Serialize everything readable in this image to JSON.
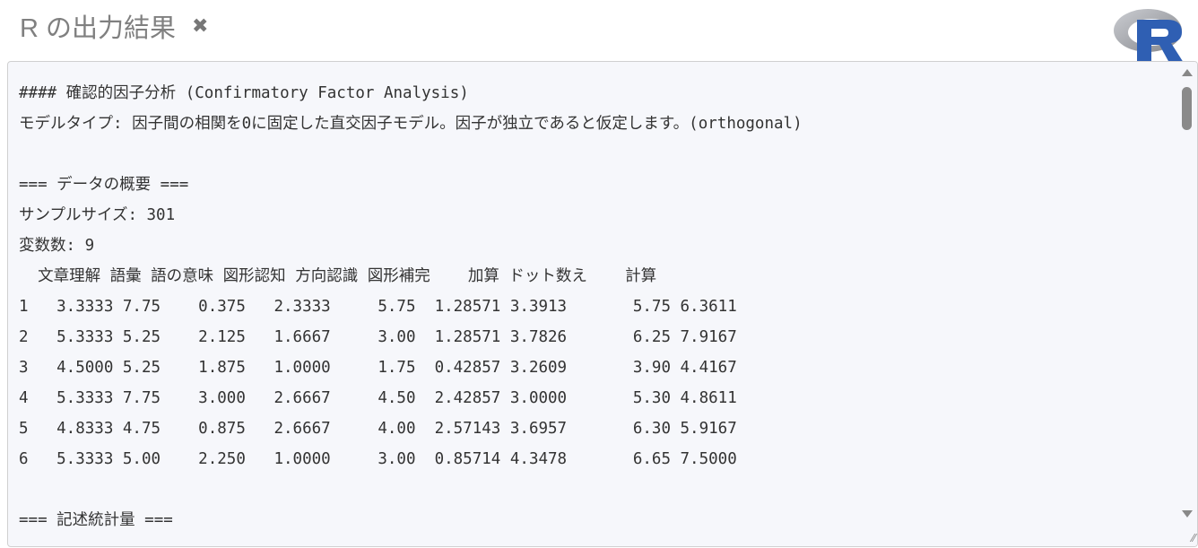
{
  "header": {
    "title": "R の出力結果",
    "close_icon": "close-icon",
    "logo": "R"
  },
  "output": {
    "lines": [
      "#### 確認的因子分析 (Confirmatory Factor Analysis)",
      "モデルタイプ: 因子間の相関を0に固定した直交因子モデル。因子が独立であると仮定します。(orthogonal)",
      "",
      "=== データの概要 ===",
      "サンプルサイズ: 301",
      "変数数: 9",
      "  文章理解 語彙 語の意味 図形認知 方向認識 図形補完    加算 ドット数え    計算",
      "1   3.3333 7.75    0.375   2.3333     5.75  1.28571 3.3913       5.75 6.3611",
      "2   5.3333 5.25    2.125   1.6667     3.00  1.28571 3.7826       6.25 7.9167",
      "3   4.5000 5.25    1.875   1.0000     1.75  0.42857 3.2609       3.90 4.4167",
      "4   5.3333 7.75    3.000   2.6667     4.50  2.42857 3.0000       5.30 4.8611",
      "5   4.8333 4.75    0.875   2.6667     4.00  2.57143 3.6957       6.30 5.9167",
      "6   5.3333 5.00    2.250   1.0000     3.00  0.85714 4.3478       6.65 7.5000",
      "",
      "=== 記述統計量 ==="
    ]
  }
}
